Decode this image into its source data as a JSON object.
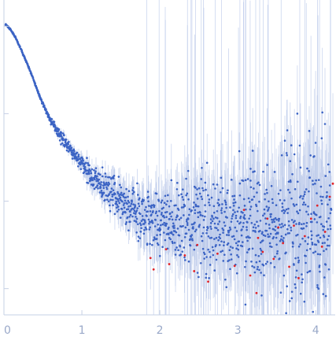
{
  "chart_data": {
    "type": "scatter",
    "title": "",
    "xlabel": "",
    "ylabel": "",
    "xlim": [
      0,
      4.25
    ],
    "y_log": true,
    "ylim_log10": [
      -4.3,
      -0.7
    ],
    "x_ticks": [
      0,
      1,
      2,
      3,
      4
    ],
    "x_tick_labels": [
      "0",
      "1",
      "2",
      "3",
      "4"
    ],
    "y_ticks_log10": [
      -1.0,
      -2.0,
      -3.0,
      -4.0
    ],
    "grid": false,
    "legend": "none",
    "colors": {
      "points": "#3b63c4",
      "outliers": "#e0242a",
      "error_bars": "#b9c8ea",
      "axis": "#c6d0e4",
      "tick_text": "#9aa9c9"
    },
    "series": [
      {
        "role": "data",
        "color": "#3b63c4",
        "x": [
          0.02,
          0.08,
          0.15,
          0.22,
          0.3,
          0.38,
          0.45,
          0.52,
          0.6,
          0.68,
          0.75,
          0.82,
          0.9,
          0.95,
          1.0,
          1.05,
          1.1,
          1.15,
          1.2,
          1.25,
          1.3,
          1.38,
          1.45,
          1.52,
          1.6,
          1.68,
          1.75,
          1.82,
          1.9,
          2.0,
          2.1,
          2.2,
          2.3,
          2.4,
          2.5,
          2.6,
          2.7,
          2.8,
          2.9,
          3.0,
          3.1,
          3.2,
          3.3,
          3.4,
          3.5,
          3.6,
          3.7,
          3.8,
          3.9,
          4.0,
          4.1,
          4.2
        ],
        "log10y": [
          -0.98,
          -1.03,
          -1.13,
          -1.27,
          -1.43,
          -1.61,
          -1.78,
          -1.93,
          -2.07,
          -2.19,
          -2.29,
          -2.37,
          -2.46,
          -2.53,
          -2.58,
          -2.63,
          -2.68,
          -2.73,
          -2.77,
          -2.82,
          -2.87,
          -2.92,
          -2.98,
          -3.03,
          -3.07,
          -3.11,
          -3.14,
          -3.17,
          -3.19,
          -3.21,
          -3.23,
          -3.25,
          -3.26,
          -3.27,
          -3.28,
          -3.28,
          -3.29,
          -3.29,
          -3.3,
          -3.3,
          -3.3,
          -3.3,
          -3.29,
          -3.29,
          -3.28,
          -3.28,
          -3.27,
          -3.26,
          -3.25,
          -3.24,
          -3.23,
          -3.22
        ],
        "scatter": [
          0.01,
          0.01,
          0.01,
          0.01,
          0.01,
          0.01,
          0.02,
          0.02,
          0.03,
          0.04,
          0.05,
          0.06,
          0.07,
          0.08,
          0.09,
          0.1,
          0.11,
          0.12,
          0.13,
          0.14,
          0.15,
          0.17,
          0.19,
          0.21,
          0.23,
          0.25,
          0.27,
          0.29,
          0.31,
          0.34,
          0.37,
          0.4,
          0.43,
          0.46,
          0.48,
          0.5,
          0.52,
          0.54,
          0.56,
          0.58,
          0.6,
          0.62,
          0.64,
          0.66,
          0.68,
          0.7,
          0.72,
          0.74,
          0.76,
          0.78,
          0.8,
          0.82
        ]
      },
      {
        "role": "outliers",
        "color": "#e0242a",
        "x": [
          1.88,
          1.92,
          2.08,
          2.12,
          2.32,
          2.44,
          2.48,
          2.62,
          2.74,
          2.96,
          3.08,
          3.16,
          3.24,
          3.26,
          3.32,
          3.38,
          3.46,
          3.52,
          3.58,
          3.66,
          3.72,
          3.78,
          3.86,
          3.94,
          4.02,
          4.08,
          4.12,
          4.18,
          4.22
        ],
        "log10y": [
          -3.65,
          -3.78,
          -3.55,
          -3.72,
          -3.62,
          -3.8,
          -3.5,
          -3.92,
          -3.6,
          -3.74,
          -3.1,
          -3.85,
          -4.05,
          -3.42,
          -3.58,
          -3.2,
          -3.66,
          -3.3,
          -3.48,
          -3.75,
          -3.28,
          -3.88,
          -3.4,
          -3.2,
          -3.05,
          -3.52,
          -3.35,
          -2.95,
          -2.8
        ]
      }
    ]
  }
}
